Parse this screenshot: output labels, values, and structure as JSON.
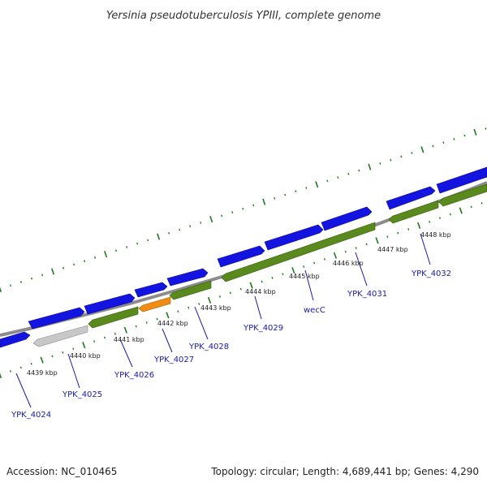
{
  "header": {
    "title": "Yersinia pseudotuberculosis YPIII, complete genome"
  },
  "footer": {
    "accession": "Accession: NC_010465",
    "summary": "Topology: circular; Length: 4,689,441 bp; Genes: 4,290"
  },
  "colors": {
    "backbone": "#8c8c8c",
    "forward_gene": "#1414e0",
    "reverse_gene": "#5a8a1e",
    "pseudo_gene": "#c8c8c8",
    "rna_gene": "#f08c14",
    "tick": "#1e7a1e",
    "label": "#1a1aa6"
  },
  "scale_labels": [
    "4439 kbp",
    "4440 kbp",
    "4441 kbp",
    "4442 kbp",
    "4443 kbp",
    "4444 kbp",
    "4445 kbp",
    "4446 kbp",
    "4447 kbp",
    "4448 kbp"
  ],
  "gene_labels": [
    "YPK_4024",
    "YPK_4025",
    "YPK_4026",
    "YPK_4027",
    "YPK_4028",
    "YPK_4029",
    "wecC",
    "YPK_4031",
    "YPK_4032"
  ]
}
